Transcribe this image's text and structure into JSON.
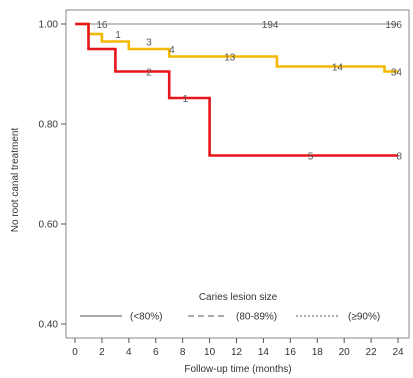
{
  "chart_data": {
    "type": "line",
    "step": true,
    "xlabel": "Follow-up time (months)",
    "ylabel": "No root canal treatment",
    "xlim": [
      0,
      24
    ],
    "ylim": [
      0.4,
      1.0
    ],
    "xticks": [
      "0",
      "2",
      "4",
      "6",
      "8",
      "10",
      "12",
      "14",
      "16",
      "18",
      "20",
      "22",
      "24"
    ],
    "yticks": [
      "0.40",
      "0.60",
      "0.80",
      "1.00"
    ],
    "grid": false,
    "legend": {
      "title": "Caries lesion size",
      "placement": "bottom",
      "entries": [
        {
          "label": "(<80%)",
          "style": "solid"
        },
        {
          "label": "(80-89%)",
          "style": "dashed"
        },
        {
          "label": "(≥90%)",
          "style": "dotted"
        }
      ]
    },
    "series": [
      {
        "color": "#808080",
        "points": [
          [
            0,
            1.0
          ],
          [
            24,
            1.0
          ]
        ],
        "risk_labels": [
          {
            "x": 2,
            "y": 1.0,
            "text": "16"
          },
          {
            "x": 14.5,
            "y": 1.0,
            "text": "194"
          },
          {
            "x": 24,
            "y": 1.0,
            "text": "196"
          }
        ]
      },
      {
        "color": "#f5b800",
        "points": [
          [
            0,
            1.0
          ],
          [
            1,
            1.0
          ],
          [
            1,
            0.98
          ],
          [
            2,
            0.98
          ],
          [
            2,
            0.965
          ],
          [
            4,
            0.965
          ],
          [
            4,
            0.95
          ],
          [
            7,
            0.95
          ],
          [
            7,
            0.935
          ],
          [
            15,
            0.935
          ],
          [
            15,
            0.915
          ],
          [
            23,
            0.915
          ],
          [
            23,
            0.905
          ],
          [
            24,
            0.905
          ]
        ],
        "risk_labels": [
          {
            "x": 3.2,
            "y": 0.98,
            "text": "1"
          },
          {
            "x": 5.5,
            "y": 0.965,
            "text": "3"
          },
          {
            "x": 7.2,
            "y": 0.95,
            "text": "4"
          },
          {
            "x": 11.5,
            "y": 0.935,
            "text": "13"
          },
          {
            "x": 19.5,
            "y": 0.915,
            "text": "14"
          },
          {
            "x": 24,
            "y": 0.905,
            "text": "34"
          }
        ]
      },
      {
        "color": "#e8141b",
        "points": [
          [
            0,
            1.0
          ],
          [
            1,
            1.0
          ],
          [
            1,
            0.95
          ],
          [
            3,
            0.95
          ],
          [
            3,
            0.905
          ],
          [
            7,
            0.905
          ],
          [
            7,
            0.852
          ],
          [
            10,
            0.852
          ],
          [
            10,
            0.737
          ],
          [
            24,
            0.737
          ]
        ],
        "risk_labels": [
          {
            "x": 5.5,
            "y": 0.905,
            "text": "2"
          },
          {
            "x": 8.2,
            "y": 0.852,
            "text": "1"
          },
          {
            "x": 17.5,
            "y": 0.737,
            "text": "5"
          },
          {
            "x": 24,
            "y": 0.737,
            "text": "8"
          }
        ]
      }
    ]
  }
}
